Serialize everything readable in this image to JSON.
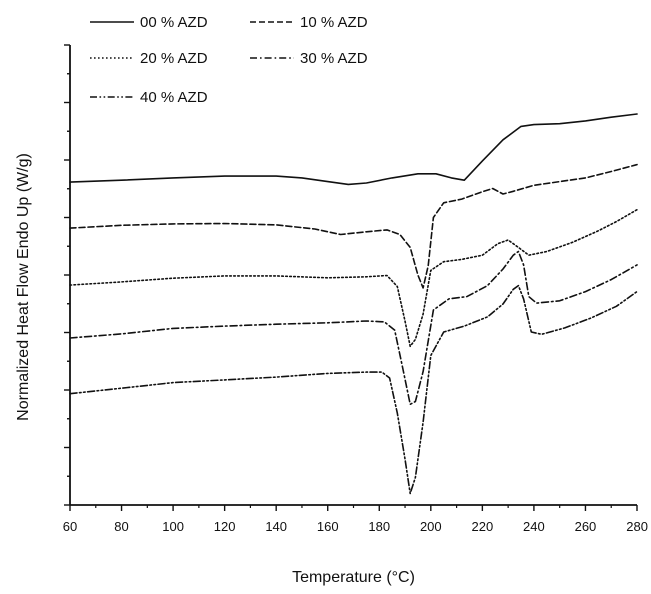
{
  "chart_data": {
    "type": "line",
    "xlabel": "Temperature (°C)",
    "ylabel": "Normalized Heat Flow Endo Up (W/g)",
    "xlim": [
      60,
      280
    ],
    "ylim": [
      0,
      100
    ],
    "x_ticks": [
      60,
      80,
      100,
      120,
      140,
      160,
      180,
      200,
      220,
      240,
      260,
      280
    ],
    "x_tick_labels": [
      "60",
      "80",
      "100",
      "120",
      "140",
      "160",
      "180",
      "200",
      "220",
      "240",
      "260",
      "280"
    ],
    "y_tick_labels_shown": false,
    "grid": false,
    "legend_position": "top-left",
    "series": [
      {
        "name": "00 % AZD",
        "style": "solid",
        "color": "#111111",
        "points": [
          [
            60,
            70.2
          ],
          [
            80,
            70.6
          ],
          [
            100,
            71.1
          ],
          [
            120,
            71.5
          ],
          [
            140,
            71.5
          ],
          [
            150,
            71.1
          ],
          [
            160,
            70.3
          ],
          [
            168,
            69.7
          ],
          [
            175,
            70.0
          ],
          [
            185,
            71.1
          ],
          [
            195,
            72.0
          ],
          [
            202,
            72.0
          ],
          [
            208,
            71.1
          ],
          [
            213,
            70.6
          ],
          [
            220,
            74.8
          ],
          [
            228,
            79.4
          ],
          [
            235,
            82.3
          ],
          [
            240,
            82.7
          ],
          [
            250,
            82.9
          ],
          [
            260,
            83.5
          ],
          [
            270,
            84.3
          ],
          [
            280,
            85.0
          ]
        ]
      },
      {
        "name": "10 % AZD",
        "style": "dashed",
        "color": "#111111",
        "points": [
          [
            60,
            60.2
          ],
          [
            80,
            60.8
          ],
          [
            100,
            61.1
          ],
          [
            120,
            61.2
          ],
          [
            140,
            60.9
          ],
          [
            155,
            60.0
          ],
          [
            165,
            58.8
          ],
          [
            175,
            59.4
          ],
          [
            183,
            59.8
          ],
          [
            188,
            58.8
          ],
          [
            192,
            56.0
          ],
          [
            195,
            50.0
          ],
          [
            197,
            47.2
          ],
          [
            199,
            52.0
          ],
          [
            201,
            62.5
          ],
          [
            205,
            65.7
          ],
          [
            212,
            66.5
          ],
          [
            220,
            68.1
          ],
          [
            224,
            68.8
          ],
          [
            228,
            67.6
          ],
          [
            232,
            68.2
          ],
          [
            240,
            69.5
          ],
          [
            250,
            70.3
          ],
          [
            260,
            71.1
          ],
          [
            270,
            72.5
          ],
          [
            280,
            74.0
          ]
        ]
      },
      {
        "name": "20 % AZD",
        "style": "dotted",
        "color": "#111111",
        "points": [
          [
            60,
            47.8
          ],
          [
            80,
            48.5
          ],
          [
            100,
            49.3
          ],
          [
            120,
            49.8
          ],
          [
            140,
            49.8
          ],
          [
            160,
            49.4
          ],
          [
            175,
            49.6
          ],
          [
            183,
            49.9
          ],
          [
            187,
            47.5
          ],
          [
            190,
            40.0
          ],
          [
            192,
            34.5
          ],
          [
            194,
            36.0
          ],
          [
            197,
            41.5
          ],
          [
            200,
            51.0
          ],
          [
            205,
            52.9
          ],
          [
            212,
            53.4
          ],
          [
            220,
            54.3
          ],
          [
            226,
            56.8
          ],
          [
            230,
            57.6
          ],
          [
            234,
            56.0
          ],
          [
            238,
            54.3
          ],
          [
            245,
            55.1
          ],
          [
            255,
            57.1
          ],
          [
            265,
            59.6
          ],
          [
            272,
            61.6
          ],
          [
            280,
            64.2
          ]
        ]
      },
      {
        "name": "30 % AZD",
        "style": "dash-dot",
        "color": "#111111",
        "points": [
          [
            60,
            36.3
          ],
          [
            80,
            37.2
          ],
          [
            100,
            38.4
          ],
          [
            120,
            38.9
          ],
          [
            140,
            39.3
          ],
          [
            160,
            39.6
          ],
          [
            175,
            40.0
          ],
          [
            182,
            39.8
          ],
          [
            186,
            38.0
          ],
          [
            189,
            30.0
          ],
          [
            192,
            21.9
          ],
          [
            194,
            22.5
          ],
          [
            197,
            29.0
          ],
          [
            201,
            42.4
          ],
          [
            207,
            44.8
          ],
          [
            214,
            45.3
          ],
          [
            222,
            47.7
          ],
          [
            228,
            51.3
          ],
          [
            232,
            54.3
          ],
          [
            234,
            55.1
          ],
          [
            236,
            52.2
          ],
          [
            238,
            45.3
          ],
          [
            241,
            43.9
          ],
          [
            250,
            44.4
          ],
          [
            260,
            46.4
          ],
          [
            270,
            49.0
          ],
          [
            280,
            52.2
          ]
        ]
      },
      {
        "name": "40 % AZD",
        "style": "dash-dot-dot",
        "color": "#111111",
        "points": [
          [
            60,
            24.2
          ],
          [
            80,
            25.4
          ],
          [
            100,
            26.6
          ],
          [
            120,
            27.2
          ],
          [
            140,
            27.8
          ],
          [
            160,
            28.6
          ],
          [
            175,
            28.9
          ],
          [
            181,
            28.9
          ],
          [
            184,
            27.6
          ],
          [
            187,
            20.0
          ],
          [
            190,
            10.0
          ],
          [
            192,
            2.5
          ],
          [
            194,
            6.0
          ],
          [
            197,
            18.0
          ],
          [
            200,
            32.5
          ],
          [
            205,
            37.6
          ],
          [
            213,
            38.9
          ],
          [
            222,
            40.9
          ],
          [
            228,
            43.7
          ],
          [
            232,
            46.9
          ],
          [
            234,
            47.7
          ],
          [
            236,
            44.8
          ],
          [
            239,
            37.6
          ],
          [
            243,
            37.1
          ],
          [
            252,
            38.5
          ],
          [
            262,
            40.6
          ],
          [
            272,
            43.2
          ],
          [
            280,
            46.4
          ]
        ]
      }
    ]
  }
}
